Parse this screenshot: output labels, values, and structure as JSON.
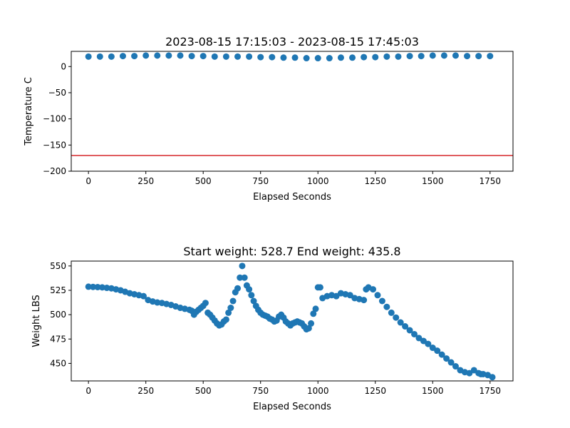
{
  "chart_data": [
    {
      "type": "scatter",
      "title": "2023-08-15 17:15:03 - 2023-08-15 17:45:03",
      "xlabel": "Elapsed Seconds",
      "ylabel": "Temperature C",
      "xlim": [
        -75,
        1850
      ],
      "ylim": [
        -200,
        29
      ],
      "xticks": [
        0,
        250,
        500,
        750,
        1000,
        1250,
        1500,
        1750
      ],
      "yticks": [
        0,
        -50,
        -100,
        -150,
        -200
      ],
      "marker_color": "#1f77b4",
      "reference_line": {
        "y": -170,
        "color": "#d62728"
      },
      "series": [
        {
          "x": [
            0,
            50,
            100,
            150,
            200,
            250,
            300,
            350,
            400,
            450,
            500,
            550,
            600,
            650,
            700,
            750,
            800,
            850,
            900,
            950,
            1000,
            1050,
            1100,
            1150,
            1200,
            1250,
            1300,
            1350,
            1400,
            1450,
            1500,
            1550,
            1600,
            1650,
            1700,
            1750
          ],
          "y": [
            19,
            19,
            19,
            20,
            20,
            21,
            21,
            21,
            21,
            20,
            20,
            19,
            19,
            19,
            19,
            18,
            18,
            17,
            17,
            16,
            16,
            16,
            17,
            17,
            18,
            18,
            19,
            19,
            20,
            20,
            21,
            21,
            21,
            20,
            20,
            20
          ]
        }
      ]
    },
    {
      "type": "scatter",
      "title": "Start weight: 528.7 End weight: 435.8",
      "xlabel": "Elapsed Seconds",
      "ylabel": "Weight LBS",
      "xlim": [
        -75,
        1850
      ],
      "ylim": [
        432,
        555
      ],
      "xticks": [
        0,
        250,
        500,
        750,
        1000,
        1250,
        1500,
        1750
      ],
      "yticks": [
        450,
        475,
        500,
        525,
        550
      ],
      "marker_color": "#1f77b4",
      "series": [
        {
          "x": [
            0,
            20,
            40,
            60,
            80,
            100,
            120,
            140,
            160,
            180,
            200,
            220,
            240,
            260,
            280,
            300,
            320,
            340,
            360,
            380,
            400,
            420,
            440,
            450,
            460,
            470,
            480,
            490,
            500,
            510,
            520,
            530,
            540,
            550,
            560,
            570,
            580,
            590,
            600,
            610,
            620,
            630,
            640,
            650,
            660,
            670,
            680,
            690,
            700,
            710,
            720,
            730,
            740,
            750,
            760,
            770,
            780,
            790,
            800,
            810,
            820,
            830,
            840,
            850,
            860,
            870,
            880,
            890,
            900,
            910,
            920,
            930,
            940,
            950,
            960,
            970,
            980,
            990,
            1000,
            1010,
            1020,
            1040,
            1060,
            1080,
            1100,
            1120,
            1140,
            1160,
            1180,
            1200,
            1210,
            1220,
            1240,
            1260,
            1280,
            1300,
            1320,
            1340,
            1360,
            1380,
            1400,
            1420,
            1440,
            1460,
            1480,
            1500,
            1520,
            1540,
            1560,
            1580,
            1600,
            1620,
            1640,
            1660,
            1680,
            1700,
            1710,
            1720,
            1740,
            1760
          ],
          "y": [
            528.7,
            528.5,
            528.3,
            528,
            527.5,
            527,
            526,
            525,
            523.5,
            522,
            521,
            520,
            519,
            515,
            513.5,
            512.5,
            512,
            511,
            510,
            508.5,
            507,
            506,
            505,
            504,
            500,
            503,
            505,
            507,
            509,
            512,
            502,
            500,
            497,
            494,
            491,
            489,
            490,
            493,
            495,
            502,
            507,
            514,
            523,
            527,
            538,
            550,
            538,
            530,
            526,
            520,
            514,
            509,
            505,
            502,
            500,
            499,
            498,
            496,
            495,
            493,
            494,
            498,
            500,
            497,
            493,
            491,
            489,
            491,
            492,
            493,
            492,
            491,
            488,
            485,
            486,
            491,
            501,
            506,
            528,
            528,
            517,
            519,
            520,
            519,
            522,
            521,
            520,
            517,
            516,
            515,
            526,
            528,
            526,
            520,
            514,
            508,
            502,
            497,
            492,
            488,
            484,
            480,
            476,
            473,
            470,
            466,
            463,
            459,
            455,
            451,
            447,
            443,
            441,
            440,
            443,
            440,
            439,
            439,
            438,
            435.8
          ]
        }
      ]
    }
  ]
}
